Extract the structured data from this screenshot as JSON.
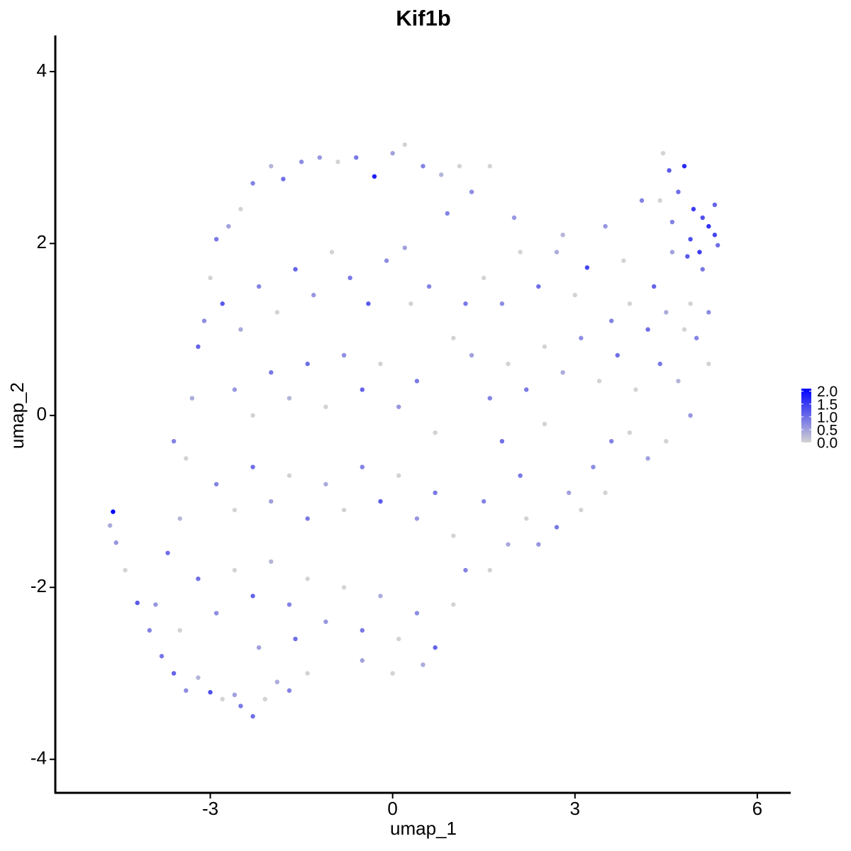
{
  "chart_data": {
    "type": "scatter",
    "title": "Kif1b",
    "x_label": "umap_1",
    "y_label": "umap_2",
    "xlim": [
      -5.55,
      6.55
    ],
    "ylim": [
      -4.39,
      4.42
    ],
    "xticks": [
      -3,
      0,
      3,
      6
    ],
    "yticks": [
      -4,
      -2,
      0,
      2,
      4
    ],
    "colors": [
      "#d3d3d3",
      "#0000ff"
    ],
    "clim": [
      0,
      2.1
    ],
    "cticks": [
      {
        "value": 0,
        "label": "0.0"
      },
      {
        "value": 0.5,
        "label": "0.5"
      },
      {
        "value": 1,
        "label": "1.0"
      },
      {
        "value": 1.5,
        "label": "1.5"
      },
      {
        "value": 2,
        "label": "2.0"
      }
    ],
    "x": [
      -4.6,
      -4.65,
      -4.55,
      -4.4,
      -4.2,
      -4.0,
      -3.8,
      -3.6,
      -3.4,
      -3.2,
      -3.0,
      -2.8,
      -2.6,
      -2.5,
      -2.3,
      -2.1,
      -1.9,
      -1.7,
      -1.4,
      -3.9,
      -3.7,
      -3.5,
      -3.4,
      -3.6,
      -3.3,
      -3.2,
      -3.1,
      -3.0,
      -2.9,
      -2.7,
      -2.5,
      -2.3,
      -2.0,
      -1.8,
      -1.5,
      -1.2,
      -0.9,
      -0.6,
      -0.3,
      0.0,
      0.2,
      0.5,
      0.8,
      1.1,
      1.3,
      1.6,
      -2.8,
      -2.5,
      -2.2,
      -1.9,
      -1.6,
      -1.3,
      -1.0,
      -0.7,
      -0.4,
      -0.1,
      0.3,
      0.6,
      -2.6,
      -2.3,
      -2.0,
      -1.7,
      -1.4,
      -1.1,
      -0.8,
      -0.5,
      -0.2,
      0.1,
      0.4,
      0.7,
      -2.9,
      -2.6,
      -2.3,
      -2.0,
      -1.7,
      -1.4,
      -1.1,
      -0.8,
      -0.5,
      -0.2,
      0.1,
      0.4,
      0.7,
      1.0,
      -3.2,
      -2.9,
      -2.6,
      -2.3,
      -2.0,
      -1.7,
      -1.4,
      -1.1,
      -0.8,
      -0.5,
      -0.2,
      0.1,
      0.4,
      0.7,
      1.0,
      1.2,
      -0.5,
      0.0,
      0.5,
      -1.6,
      -2.2,
      -3.5,
      1.5,
      1.6,
      1.8,
      1.9,
      2.1,
      2.2,
      2.4,
      2.5,
      2.7,
      2.9,
      3.1,
      3.3,
      3.5,
      3.6,
      3.9,
      4.2,
      4.5,
      4.9,
      5.2,
      5.0,
      4.7,
      4.4,
      4.0,
      3.7,
      3.4,
      3.1,
      2.8,
      2.5,
      2.2,
      1.9,
      1.6,
      1.3,
      1.0,
      1.2,
      1.5,
      1.8,
      2.1,
      2.4,
      2.7,
      3.0,
      3.2,
      3.5,
      3.8,
      4.1,
      4.3,
      4.6,
      4.9,
      5.1,
      3.6,
      3.9,
      4.2,
      4.5,
      4.8,
      5.2,
      4.45,
      4.55,
      4.8,
      4.7,
      4.95,
      5.1,
      5.2,
      5.3,
      5.3,
      5.35,
      4.9,
      5.05,
      4.85,
      4.6,
      4.4,
      2.0,
      2.8,
      0.2,
      0.9
    ],
    "y": [
      -1.12,
      -1.28,
      -1.48,
      -1.8,
      -2.18,
      -2.5,
      -2.8,
      -3.0,
      -3.2,
      -3.05,
      -3.22,
      -3.3,
      -3.25,
      -3.38,
      -3.5,
      -3.3,
      -3.1,
      -3.2,
      -3.0,
      -2.2,
      -1.6,
      -1.2,
      -0.5,
      -0.3,
      0.2,
      0.8,
      1.1,
      1.6,
      2.05,
      2.2,
      2.4,
      2.7,
      2.9,
      2.75,
      2.95,
      3.0,
      2.95,
      3.0,
      2.78,
      3.05,
      3.15,
      2.9,
      2.8,
      2.9,
      2.6,
      2.9,
      1.3,
      1.0,
      1.5,
      1.2,
      1.7,
      1.4,
      1.9,
      1.6,
      1.3,
      1.8,
      1.3,
      1.5,
      0.3,
      0.0,
      0.5,
      0.2,
      0.6,
      0.1,
      0.7,
      0.3,
      0.6,
      0.1,
      0.4,
      -0.2,
      -0.8,
      -1.1,
      -0.6,
      -1.0,
      -0.7,
      -1.2,
      -0.8,
      -1.1,
      -0.6,
      -1.0,
      -0.7,
      -1.2,
      -0.9,
      -1.4,
      -1.9,
      -2.3,
      -1.8,
      -2.1,
      -1.7,
      -2.2,
      -1.9,
      -2.4,
      -2.0,
      -2.5,
      -2.1,
      -2.6,
      -2.3,
      -2.7,
      -2.2,
      -1.8,
      -2.85,
      -3.0,
      -2.9,
      -2.6,
      -2.7,
      -2.5,
      -1.0,
      -1.8,
      -0.3,
      -1.5,
      -0.7,
      -1.2,
      -1.5,
      -0.1,
      -1.3,
      -0.9,
      -1.1,
      -0.6,
      -0.9,
      -0.3,
      -0.2,
      -0.5,
      -0.3,
      0.0,
      0.6,
      0.9,
      0.4,
      0.6,
      0.3,
      0.7,
      0.4,
      0.9,
      0.5,
      0.8,
      0.3,
      0.6,
      0.2,
      0.7,
      0.9,
      1.3,
      1.6,
      1.3,
      1.9,
      1.5,
      1.9,
      1.4,
      1.72,
      2.2,
      1.8,
      2.5,
      1.5,
      1.9,
      1.3,
      1.7,
      1.1,
      1.3,
      1.0,
      1.2,
      1.0,
      1.2,
      3.05,
      2.85,
      2.9,
      2.6,
      2.4,
      2.3,
      2.2,
      2.45,
      2.1,
      1.98,
      2.05,
      1.9,
      1.85,
      2.25,
      2.5,
      2.3,
      2.1,
      1.95,
      2.35
    ],
    "values": [
      2.1,
      0.4,
      0.6,
      0,
      1.2,
      0.8,
      0.9,
      1.1,
      0.7,
      0.3,
      1.3,
      0,
      0.5,
      0.9,
      1.0,
      0,
      0.4,
      0.8,
      0,
      0.6,
      1.0,
      0.3,
      0,
      0.8,
      0.4,
      1.1,
      0.7,
      0,
      0.9,
      0.5,
      0,
      0.8,
      0.3,
      1.0,
      0.7,
      0.6,
      0,
      0.9,
      1.8,
      0.5,
      0,
      0.8,
      0.3,
      0,
      0.7,
      0,
      1.2,
      0.4,
      0.8,
      0,
      1.1,
      0.6,
      0,
      0.9,
      1.2,
      0.7,
      0,
      0.8,
      0.6,
      0,
      0.9,
      0.3,
      1.0,
      0,
      0.7,
      1.1,
      0,
      0.6,
      0.9,
      0,
      0.8,
      0,
      1.0,
      0.5,
      0,
      0.9,
      0.4,
      0,
      0.8,
      1.2,
      0,
      0.6,
      0.9,
      0,
      1.0,
      0.7,
      0,
      1.1,
      0.3,
      0.8,
      0,
      0.6,
      0,
      0.9,
      0.4,
      0,
      0.7,
      1.1,
      0,
      0.8,
      0.5,
      0,
      0.4,
      1.0,
      0.5,
      0,
      0.8,
      0,
      1.0,
      0.4,
      0.9,
      0,
      0.6,
      0,
      0.9,
      0.5,
      0,
      0.7,
      0,
      0.8,
      0,
      0.5,
      0,
      0.6,
      0,
      0.8,
      0.3,
      0.9,
      0,
      1.0,
      0,
      0.7,
      0.4,
      0,
      0.9,
      0,
      0.8,
      0.5,
      0,
      0.9,
      0,
      0.7,
      0,
      1.0,
      0.4,
      0,
      1.4,
      0.6,
      0,
      0.8,
      1.1,
      0.5,
      0,
      0.9,
      0.8,
      0,
      1.0,
      0.4,
      0,
      0.7,
      0,
      1.2,
      1.7,
      1.0,
      1.5,
      1.3,
      1.6,
      1.1,
      1.4,
      1.0,
      1.3,
      1.5,
      1.2,
      0.8,
      0,
      0.6,
      0.3,
      0.5,
      0.8
    ]
  }
}
